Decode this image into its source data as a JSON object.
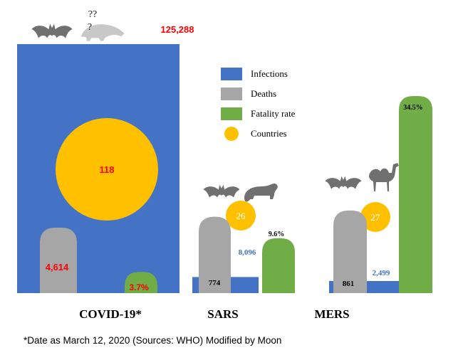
{
  "chart_data": {
    "type": "bar",
    "title": "",
    "xlabel": "",
    "ylabel": "",
    "categories": [
      "COVID-19*",
      "SARS",
      "MERS"
    ],
    "series": [
      {
        "name": "Infections",
        "values": [
          125288,
          8096,
          2499
        ],
        "labels": [
          "125,288",
          "8,096",
          "2,499"
        ],
        "color": "#4472c4"
      },
      {
        "name": "Deaths",
        "values": [
          4614,
          774,
          861
        ],
        "labels": [
          "4,614",
          "774",
          "861"
        ],
        "color": "#a6a6a6"
      },
      {
        "name": "Fatality rate",
        "values": [
          3.7,
          9.6,
          34.5
        ],
        "labels": [
          "3.7%",
          "9.6%",
          "34.5%"
        ],
        "color": "#70ad47"
      },
      {
        "name": "Countries",
        "values": [
          118,
          26,
          27
        ],
        "labels": [
          "118",
          "26",
          "27"
        ],
        "color": "#ffc000"
      }
    ],
    "animal_icons": {
      "COVID-19*": [
        "bat-icon",
        "pangolin-icon"
      ],
      "SARS": [
        "bat-icon",
        "civet-icon"
      ],
      "MERS": [
        "bat-icon",
        "camel-icon"
      ]
    },
    "pangolin_uncertainty_mark": "??\n?",
    "legend_position": "top-right",
    "grid": false,
    "footnote": "*Date as March 12, 2020 (Sources: WHO) Modified by Moon"
  }
}
